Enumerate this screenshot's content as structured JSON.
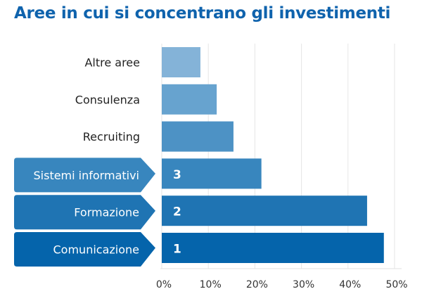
{
  "chart_data": {
    "type": "bar",
    "orientation": "horizontal",
    "title": "Aree in cui si concentrano gli investimenti",
    "categories": [
      "Altre aree",
      "Consulenza",
      "Recruiting",
      "Sistemi informativi",
      "Formazione",
      "Comunicazione"
    ],
    "values": [
      8.3,
      11.8,
      15.4,
      21.4,
      44.1,
      47.7
    ],
    "ranks": [
      "",
      "",
      "",
      "3",
      "2",
      "1"
    ],
    "colors": [
      "#84b3d8",
      "#67a3cf",
      "#4d92c5",
      "#3886be",
      "#1f74b3",
      "#0564ab"
    ],
    "highlighted": [
      false,
      false,
      false,
      true,
      true,
      true
    ],
    "xlim": [
      0,
      50
    ],
    "xticks": [
      "0%",
      "10%",
      "20%",
      "30%",
      "40%",
      "50%"
    ],
    "xlabel": "",
    "ylabel": "",
    "grid": true,
    "title_color": "#0f63ad"
  }
}
